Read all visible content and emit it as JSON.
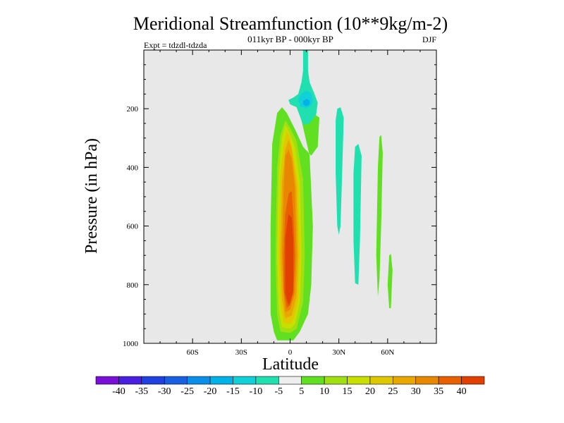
{
  "chart_data": {
    "type": "contour",
    "title": "Meridional Streamfunction (10**9kg/m-2)",
    "subtitle": "011kyr BP - 000kyr BP",
    "left_label": "Expt = tdzdl-tdzda",
    "right_label": "DJF",
    "xlabel": "Latitude",
    "ylabel": "Pressure (in hPa)",
    "xlim": [
      -90,
      90
    ],
    "ylim": [
      0,
      1000
    ],
    "y_inverted": true,
    "x_ticks": [
      {
        "value": -60,
        "label": "60S"
      },
      {
        "value": -30,
        "label": "30S"
      },
      {
        "value": 0,
        "label": "0"
      },
      {
        "value": 30,
        "label": "30N"
      },
      {
        "value": 60,
        "label": "60N"
      }
    ],
    "y_ticks": [
      {
        "value": 200,
        "label": "200"
      },
      {
        "value": 400,
        "label": "400"
      },
      {
        "value": 600,
        "label": "600"
      },
      {
        "value": 800,
        "label": "800"
      },
      {
        "value": 1000,
        "label": "1000"
      }
    ],
    "colorbar": {
      "levels": [
        -45,
        -40,
        -35,
        -30,
        -25,
        -20,
        -15,
        -10,
        -5,
        5,
        10,
        15,
        20,
        25,
        30,
        35,
        40,
        45
      ],
      "labels": [
        "-40",
        "-35",
        "-30",
        "-25",
        "-20",
        "-15",
        "-10",
        "-5",
        "5",
        "10",
        "15",
        "20",
        "25",
        "30",
        "35",
        "40"
      ],
      "colors": [
        "#7a10d8",
        "#4a20e0",
        "#2040e0",
        "#1860e0",
        "#0a8ee8",
        "#00b2e8",
        "#10d0d8",
        "#20e0b0",
        "#eeeeee",
        "#60e020",
        "#a0e010",
        "#c8e000",
        "#e0c800",
        "#e8a800",
        "#e88800",
        "#e86000",
        "#e04000"
      ]
    },
    "regions": [
      {
        "name": "positive-cell-5",
        "level": 5,
        "color": "#60e020",
        "points": [
          [
            -8,
            990
          ],
          [
            -10,
            960
          ],
          [
            -12,
            900
          ],
          [
            -12,
            600
          ],
          [
            -11,
            320
          ],
          [
            -8,
            215
          ],
          [
            -5,
            195
          ],
          [
            -2,
            215
          ],
          [
            3,
            270
          ],
          [
            8,
            330
          ],
          [
            13,
            360
          ],
          [
            17,
            330
          ],
          [
            18,
            230
          ],
          [
            14,
            215
          ],
          [
            10,
            225
          ],
          [
            7,
            240
          ],
          [
            12,
            360
          ],
          [
            14,
            600
          ],
          [
            13,
            800
          ],
          [
            11,
            900
          ],
          [
            6,
            960
          ],
          [
            2,
            990
          ]
        ]
      },
      {
        "name": "positive-cell-10",
        "level": 10,
        "color": "#a0e010",
        "points": [
          [
            -6,
            960
          ],
          [
            -8,
            900
          ],
          [
            -9,
            700
          ],
          [
            -8,
            400
          ],
          [
            -6,
            290
          ],
          [
            -3,
            240
          ],
          [
            0,
            265
          ],
          [
            4,
            310
          ],
          [
            8,
            440
          ],
          [
            9,
            700
          ],
          [
            8,
            860
          ],
          [
            4,
            950
          ],
          [
            0,
            965
          ]
        ]
      },
      {
        "name": "positive-cell-15",
        "level": 15,
        "color": "#c8e000",
        "points": [
          [
            -5,
            945
          ],
          [
            -7,
            880
          ],
          [
            -8,
            700
          ],
          [
            -7,
            420
          ],
          [
            -5,
            300
          ],
          [
            -3,
            255
          ],
          [
            -1,
            275
          ],
          [
            3,
            330
          ],
          [
            6,
            450
          ],
          [
            7,
            700
          ],
          [
            6,
            860
          ],
          [
            3,
            935
          ],
          [
            0,
            950
          ]
        ]
      },
      {
        "name": "positive-cell-20",
        "level": 20,
        "color": "#e0c800",
        "points": [
          [
            -4,
            930
          ],
          [
            -6,
            860
          ],
          [
            -7,
            700
          ],
          [
            -6,
            430
          ],
          [
            -4,
            320
          ],
          [
            -2,
            275
          ],
          [
            0,
            300
          ],
          [
            2,
            360
          ],
          [
            5,
            460
          ],
          [
            6,
            700
          ],
          [
            5,
            850
          ],
          [
            2,
            920
          ],
          [
            0,
            935
          ]
        ]
      },
      {
        "name": "positive-cell-25",
        "level": 25,
        "color": "#e8a800",
        "points": [
          [
            -3,
            915
          ],
          [
            -5,
            850
          ],
          [
            -6,
            700
          ],
          [
            -5,
            450
          ],
          [
            -3,
            340
          ],
          [
            -1,
            305
          ],
          [
            1,
            335
          ],
          [
            4,
            470
          ],
          [
            5,
            700
          ],
          [
            4,
            840
          ],
          [
            1,
            905
          ]
        ]
      },
      {
        "name": "positive-cell-30",
        "level": 30,
        "color": "#e88800",
        "points": [
          [
            -3,
            895
          ],
          [
            -4,
            830
          ],
          [
            -5,
            700
          ],
          [
            -4,
            470
          ],
          [
            -3,
            360
          ],
          [
            -1,
            340
          ],
          [
            1,
            370
          ],
          [
            3,
            470
          ],
          [
            4,
            700
          ],
          [
            3,
            830
          ],
          [
            0,
            885
          ]
        ]
      },
      {
        "name": "positive-cell-35",
        "level": 35,
        "color": "#e86000",
        "points": [
          [
            -2,
            880
          ],
          [
            -4,
            820
          ],
          [
            -4,
            700
          ],
          [
            -3,
            560
          ],
          [
            -1,
            490
          ],
          [
            1,
            480
          ],
          [
            2,
            560
          ],
          [
            3,
            700
          ],
          [
            2,
            830
          ],
          [
            0,
            870
          ]
        ]
      },
      {
        "name": "positive-cell-40",
        "level": 40,
        "color": "#e04000",
        "points": [
          [
            -1,
            870
          ],
          [
            -3,
            830
          ],
          [
            -3,
            640
          ],
          [
            -1,
            560
          ],
          [
            1,
            570
          ],
          [
            2,
            650
          ],
          [
            2,
            820
          ],
          [
            0,
            860
          ]
        ]
      },
      {
        "name": "upper-jet-negative",
        "level": -5,
        "color": "#20e0b0",
        "points": [
          [
            8,
            0
          ],
          [
            11,
            0
          ],
          [
            11,
            70
          ],
          [
            12,
            110
          ],
          [
            15,
            150
          ],
          [
            17,
            180
          ],
          [
            16,
            220
          ],
          [
            12,
            250
          ],
          [
            8,
            255
          ],
          [
            6,
            225
          ],
          [
            4,
            195
          ],
          [
            0,
            185
          ],
          [
            -1,
            170
          ],
          [
            2,
            162
          ],
          [
            5,
            150
          ],
          [
            7,
            110
          ],
          [
            8,
            70
          ]
        ]
      },
      {
        "name": "upper-jet-core",
        "level": -10,
        "color": "#10d0d8",
        "points": [
          [
            5,
            165
          ],
          [
            7,
            148
          ],
          [
            10,
            138
          ],
          [
            13,
            148
          ],
          [
            14,
            170
          ],
          [
            13,
            190
          ],
          [
            10,
            198
          ],
          [
            6,
            192
          ]
        ]
      },
      {
        "name": "upper-jet-core-inner",
        "level": -15,
        "color": "#00b2e8",
        "points": [
          [
            8,
            175
          ],
          [
            10,
            166
          ],
          [
            12,
            172
          ],
          [
            12,
            185
          ],
          [
            10,
            192
          ],
          [
            8,
            186
          ]
        ]
      },
      {
        "name": "band-30n",
        "level": -5,
        "color": "#20e0b0",
        "points": [
          [
            29,
            200
          ],
          [
            31,
            195
          ],
          [
            33,
            230
          ],
          [
            32,
            420
          ],
          [
            31,
            600
          ],
          [
            30,
            630
          ],
          [
            29,
            600
          ],
          [
            28,
            420
          ],
          [
            28,
            240
          ]
        ]
      },
      {
        "name": "band-45n",
        "level": -5,
        "color": "#20e0b0",
        "points": [
          [
            40,
            330
          ],
          [
            42,
            320
          ],
          [
            44,
            360
          ],
          [
            43,
            650
          ],
          [
            42,
            800
          ],
          [
            40,
            795
          ],
          [
            39,
            650
          ],
          [
            39,
            420
          ]
        ]
      },
      {
        "name": "band-55n",
        "level": 5,
        "color": "#60e020",
        "points": [
          [
            55,
            295
          ],
          [
            56,
            290
          ],
          [
            57,
            350
          ],
          [
            56,
            600
          ],
          [
            55,
            780
          ],
          [
            54,
            840
          ],
          [
            53,
            700
          ],
          [
            54,
            400
          ]
        ]
      },
      {
        "name": "band-62n",
        "level": 5,
        "color": "#60e020",
        "points": [
          [
            61,
            700
          ],
          [
            62,
            695
          ],
          [
            63,
            750
          ],
          [
            62,
            880
          ],
          [
            61,
            880
          ],
          [
            60,
            800
          ]
        ]
      }
    ]
  }
}
